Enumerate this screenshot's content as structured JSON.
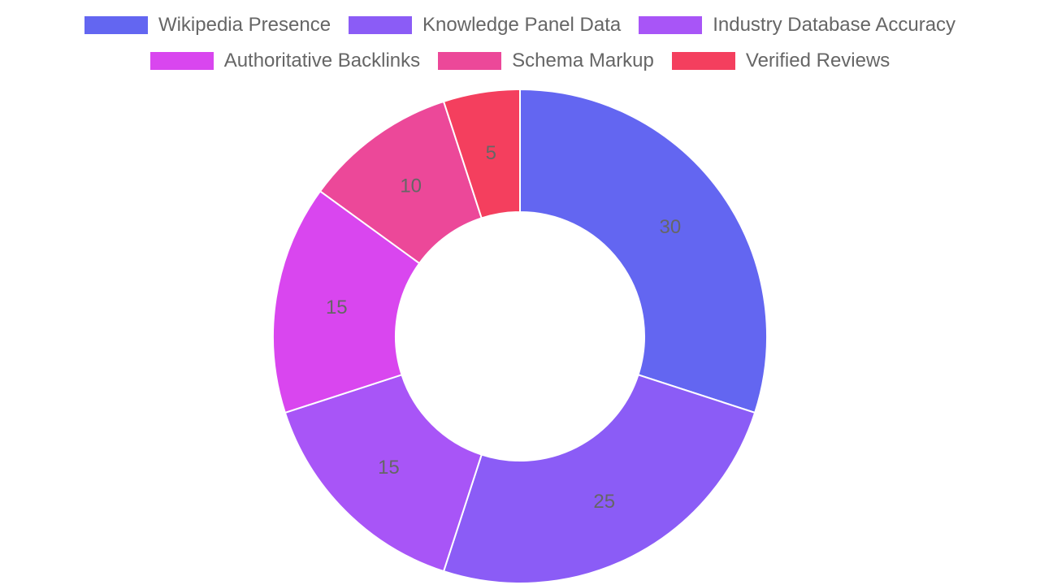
{
  "chart_data": {
    "type": "pie",
    "variant": "doughnut",
    "legend_position": "top",
    "categories": [
      "Wikipedia Presence",
      "Knowledge Panel Data",
      "Industry Database Accuracy",
      "Authoritative Backlinks",
      "Schema Markup",
      "Verified Reviews"
    ],
    "values": [
      30,
      25,
      15,
      15,
      10,
      5
    ],
    "value_labels": [
      "30",
      "25",
      "15",
      "15",
      "10",
      "5"
    ],
    "colors": [
      "#6366f1",
      "#8b5cf6",
      "#a855f7",
      "#d946ef",
      "#ec4899",
      "#f43f5e"
    ]
  }
}
